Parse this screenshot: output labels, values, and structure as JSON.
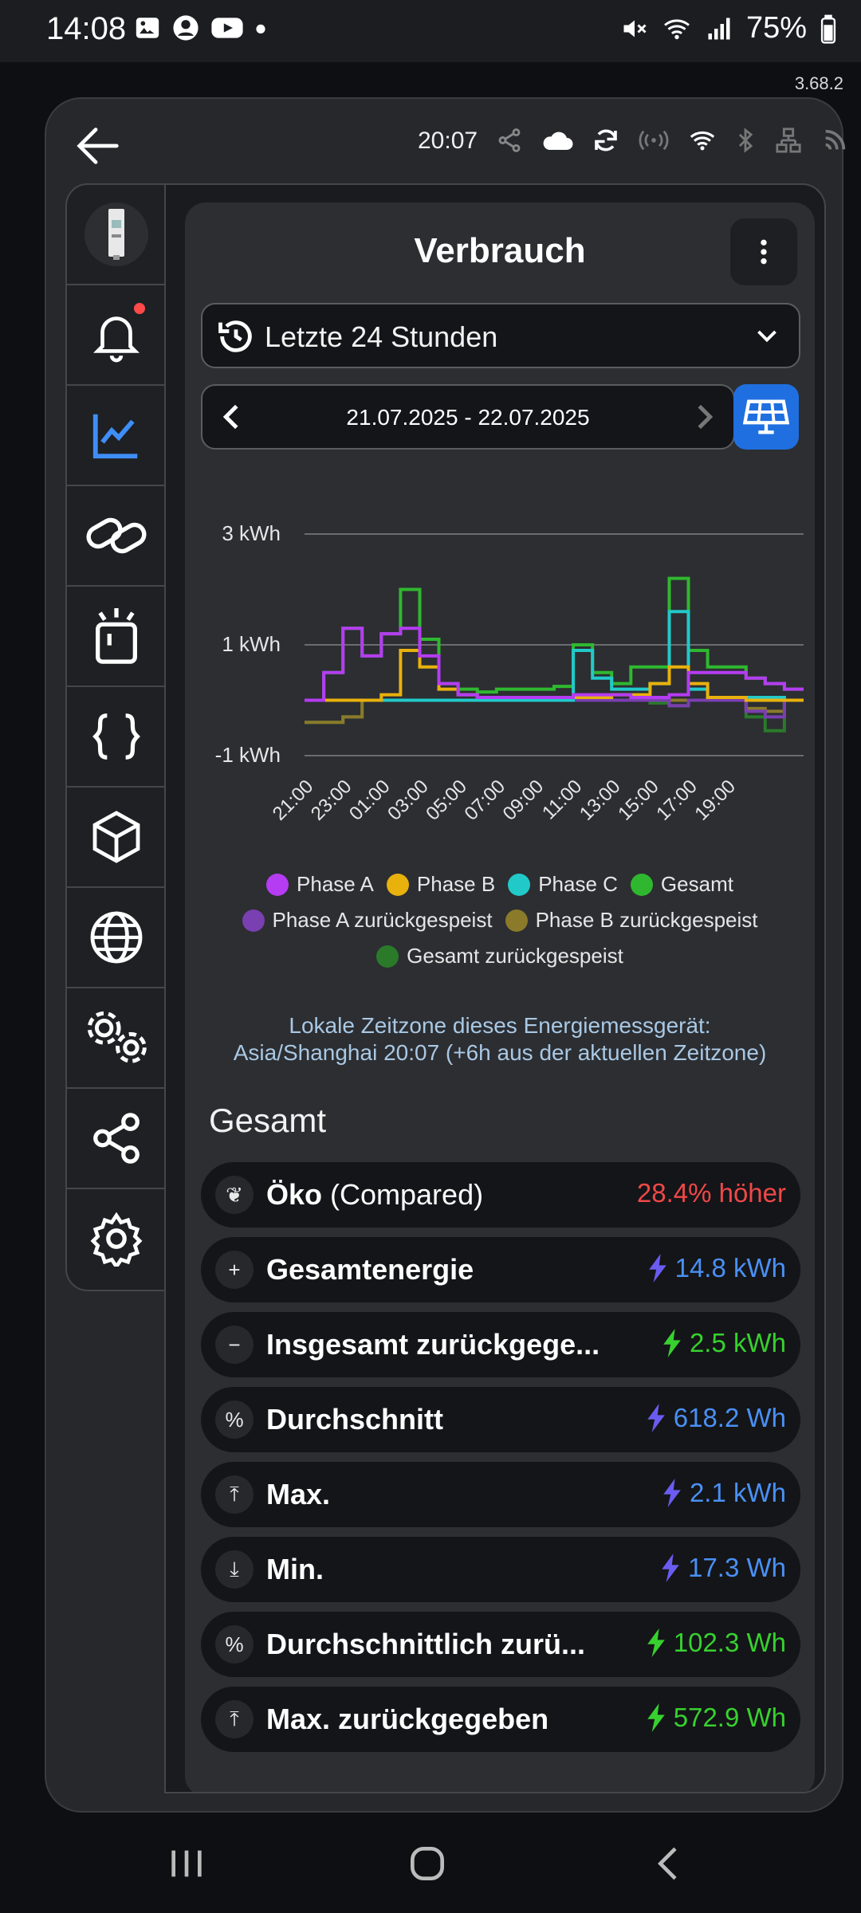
{
  "status": {
    "time": "14:08",
    "battery": "75%"
  },
  "version": "3.68.2",
  "appbar": {
    "time": "20:07"
  },
  "sidebar": {
    "items": [
      {
        "name": "device-thumbnail",
        "icon": "meter-device"
      },
      {
        "name": "notifications",
        "icon": "bell-icon"
      },
      {
        "name": "charts",
        "icon": "chart-icon"
      },
      {
        "name": "links",
        "icon": "link-icon"
      },
      {
        "name": "actions",
        "icon": "action-icon"
      },
      {
        "name": "scripts",
        "icon": "braces-icon"
      },
      {
        "name": "components",
        "icon": "cube-icon"
      },
      {
        "name": "web",
        "icon": "globe-icon"
      },
      {
        "name": "advanced-settings",
        "icon": "gears-icon"
      },
      {
        "name": "share",
        "icon": "share-icon"
      },
      {
        "name": "settings",
        "icon": "gear-icon"
      }
    ]
  },
  "panel": {
    "title": "Verbrauch",
    "range": "Letzte 24 Stunden",
    "date_range": "21.07.2025 - 22.07.2025",
    "timezone_note_line1": "Lokale Zeitzone dieses Energiemessgerät:",
    "timezone_note_line2": "Asia/Shanghai 20:07 (+6h aus der aktuellen Zeitzone)",
    "section_title": "Gesamt"
  },
  "legend": [
    {
      "label": "Phase A",
      "color": "#b53cf2"
    },
    {
      "label": "Phase B",
      "color": "#e8b10c"
    },
    {
      "label": "Phase C",
      "color": "#22c9c9"
    },
    {
      "label": "Gesamt",
      "color": "#2fb82f"
    },
    {
      "label": "Phase A zurückgespeist",
      "color": "#7a3fb0"
    },
    {
      "label": "Phase B zurückgespeist",
      "color": "#8a7a2a"
    },
    {
      "label": "Gesamt zurückgespeist",
      "color": "#2a7a2a"
    }
  ],
  "chart_data": {
    "type": "line",
    "ylim": [
      -1,
      3
    ],
    "y_ticks": [
      "3 kWh",
      "1 kWh",
      "-1 kWh"
    ],
    "y_tick_values": [
      3,
      1,
      -1
    ],
    "x_tick_labels": [
      "21:00",
      "23:00",
      "01:00",
      "03:00",
      "05:00",
      "07:00",
      "09:00",
      "11:00",
      "13:00",
      "15:00",
      "17:00",
      "19:00"
    ],
    "grid": true,
    "legend_placement": "bottom",
    "series": [
      {
        "name": "Phase A",
        "color": "#b53cf2",
        "values": [
          0.0,
          0.5,
          1.3,
          0.8,
          1.2,
          1.3,
          0.8,
          0.3,
          0.1,
          0.05,
          0.05,
          0.05,
          0.05,
          0.05,
          0.1,
          0.1,
          0.1,
          0.05,
          0.05,
          0.1,
          0.5,
          0.5,
          0.5,
          0.4,
          0.3,
          0.2
        ]
      },
      {
        "name": "Phase B",
        "color": "#e8b10c",
        "values": [
          0.0,
          0.0,
          0.0,
          0.0,
          0.1,
          0.9,
          0.6,
          0.2,
          0.1,
          0.05,
          0.05,
          0.05,
          0.05,
          0.05,
          0.05,
          0.05,
          0.1,
          0.1,
          0.3,
          0.6,
          0.3,
          0.05,
          0.05,
          0.0,
          0.0,
          0.0
        ]
      },
      {
        "name": "Phase C",
        "color": "#22c9c9",
        "values": [
          0.0,
          0.0,
          0.0,
          0.0,
          0.0,
          0.0,
          0.0,
          0.0,
          0.0,
          0.0,
          0.0,
          0.0,
          0.0,
          0.0,
          0.9,
          0.4,
          0.2,
          0.2,
          0.3,
          1.6,
          0.2,
          0.05,
          0.05,
          0.05,
          0.05,
          0.0
        ]
      },
      {
        "name": "Gesamt",
        "color": "#2fb82f",
        "values": [
          0.0,
          0.5,
          1.3,
          0.8,
          1.2,
          2.0,
          1.1,
          0.3,
          0.2,
          0.15,
          0.2,
          0.2,
          0.2,
          0.25,
          1.0,
          0.5,
          0.3,
          0.6,
          0.6,
          2.2,
          0.9,
          0.6,
          0.6,
          0.4,
          0.3,
          0.2
        ]
      },
      {
        "name": "Phase A zurückgespeist",
        "color": "#7a3fb0",
        "values": [
          0,
          0,
          0,
          0,
          0,
          0,
          0,
          0,
          0,
          0,
          0,
          0,
          0,
          0,
          0,
          0,
          0,
          0,
          0,
          -0.1,
          0,
          0,
          0,
          -0.2,
          -0.3,
          0
        ]
      },
      {
        "name": "Phase B zurückgespeist",
        "color": "#8a7a2a",
        "values": [
          -0.4,
          -0.4,
          -0.3,
          0,
          0,
          0,
          0,
          0,
          0,
          0,
          0,
          0,
          0,
          0,
          0,
          0,
          0,
          0,
          0,
          0,
          0,
          0,
          0,
          -0.15,
          -0.2,
          0
        ]
      },
      {
        "name": "Gesamt zurückgespeist",
        "color": "#2a7a2a",
        "values": [
          -0.4,
          -0.4,
          -0.3,
          0,
          0,
          0,
          0,
          0,
          0,
          0,
          0,
          0,
          0,
          0,
          0,
          0,
          0,
          0,
          -0.05,
          -0.1,
          0,
          0,
          0,
          -0.3,
          -0.55,
          0
        ]
      }
    ]
  },
  "stats": [
    {
      "icon": "leaf-icon",
      "glyph": "❦",
      "label": "Öko",
      "label_sub": " (Compared)",
      "value": "28.4% höher",
      "color": "#f04848",
      "bolt": false
    },
    {
      "icon": "plus-icon",
      "glyph": "+",
      "label": "Gesamtenergie",
      "value": "14.8 kWh",
      "color": "#4a90f5",
      "bolt": true,
      "bolt_color": "#6a5cf0"
    },
    {
      "icon": "minus-icon",
      "glyph": "−",
      "label": "Insgesamt zurückgege...",
      "value": "2.5 kWh",
      "color": "#37d12f",
      "bolt": true,
      "bolt_color": "#37d12f"
    },
    {
      "icon": "percent-icon",
      "glyph": "%",
      "label": "Durchschnitt",
      "value": "618.2 Wh",
      "color": "#4a90f5",
      "bolt": true,
      "bolt_color": "#6a5cf0"
    },
    {
      "icon": "max-icon",
      "glyph": "⤒",
      "label": "Max.",
      "value": "2.1 kWh",
      "color": "#4a90f5",
      "bolt": true,
      "bolt_color": "#6a5cf0"
    },
    {
      "icon": "min-icon",
      "glyph": "⤓",
      "label": "Min.",
      "value": "17.3 Wh",
      "color": "#4a90f5",
      "bolt": true,
      "bolt_color": "#6a5cf0"
    },
    {
      "icon": "percent-icon",
      "glyph": "%",
      "label": "Durchschnittlich zurü...",
      "value": "102.3 Wh",
      "color": "#37d12f",
      "bolt": true,
      "bolt_color": "#37d12f"
    },
    {
      "icon": "max-icon",
      "glyph": "⤒",
      "label": "Max. zurückgegeben",
      "value": "572.9 Wh",
      "color": "#37d12f",
      "bolt": true,
      "bolt_color": "#37d12f"
    }
  ]
}
